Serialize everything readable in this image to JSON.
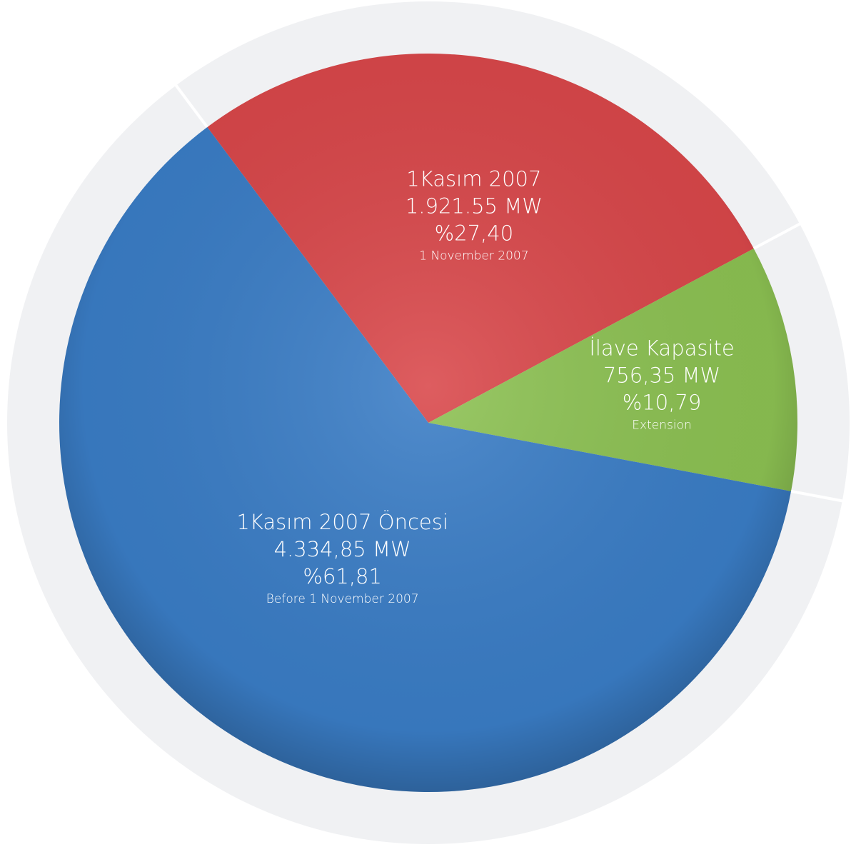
{
  "chart_data": {
    "type": "pie",
    "categories": [
      "1Kasım 2007",
      "İlave Kapasite",
      "1Kasım 2007 Öncesi"
    ],
    "subtitles": [
      "1 November 2007",
      "Extension",
      "Before 1 November 2007"
    ],
    "capacity_labels": [
      "1.921.55 MW",
      "756,35 MW",
      "4.334,85 MW"
    ],
    "values": [
      27.4,
      10.79,
      61.81
    ],
    "value_labels": [
      "%27,40",
      "%10,79",
      "%61,81"
    ],
    "colors": [
      "#d9474a",
      "#8cc152",
      "#3a7dc6"
    ]
  }
}
